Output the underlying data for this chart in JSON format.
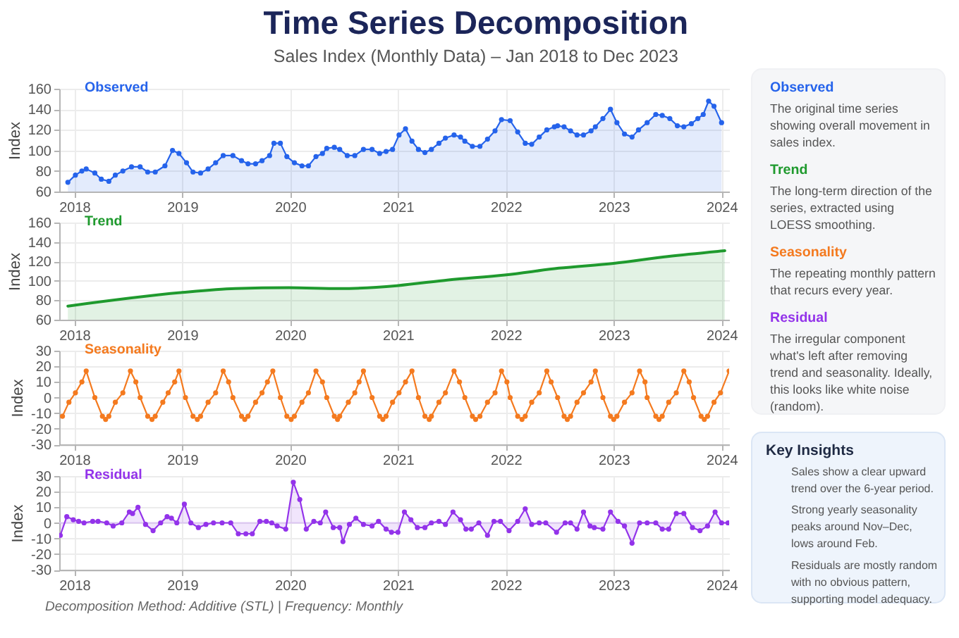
{
  "chart_data": [
    {
      "type": "area",
      "title": "Time Series Decomposition",
      "subtitle": "Sales Index (Monthly Data) – Jan 2018 to Dec 2023",
      "ylabel": "Index",
      "marker": "circle",
      "grid": true,
      "xlim": [
        2017.86,
        2024.07
      ],
      "xticks": [
        2018,
        2019,
        2020,
        2021,
        2022,
        2023,
        2024
      ],
      "ylim": [
        60,
        160
      ],
      "yticks": [
        60,
        80,
        100,
        120,
        140,
        160
      ],
      "x": [
        2017.94,
        2018.01,
        2018.07,
        2018.11,
        2018.19,
        2018.25,
        2018.32,
        2018.38,
        2018.45,
        2018.53,
        2018.61,
        2018.68,
        2018.75,
        2018.84,
        2018.91,
        2018.97,
        2019.04,
        2019.1,
        2019.17,
        2019.24,
        2019.31,
        2019.38,
        2019.47,
        2019.55,
        2019.61,
        2019.68,
        2019.74,
        2019.81,
        2019.85,
        2019.91,
        2019.97,
        2020.04,
        2020.11,
        2020.17,
        2020.24,
        2020.3,
        2020.34,
        2020.41,
        2020.46,
        2020.53,
        2020.6,
        2020.68,
        2020.76,
        2020.83,
        2020.89,
        2020.95,
        2021.01,
        2021.07,
        2021.13,
        2021.19,
        2021.25,
        2021.31,
        2021.38,
        2021.44,
        2021.52,
        2021.58,
        2021.62,
        2021.69,
        2021.76,
        2021.83,
        2021.9,
        2021.96,
        2022.04,
        2022.11,
        2022.18,
        2022.24,
        2022.31,
        2022.38,
        2022.45,
        2022.48,
        2022.54,
        2022.6,
        2022.66,
        2022.72,
        2022.79,
        2022.83,
        2022.9,
        2022.97,
        2023.03,
        2023.1,
        2023.17,
        2023.23,
        2023.31,
        2023.39,
        2023.45,
        2023.52,
        2023.59,
        2023.65,
        2023.72,
        2023.78,
        2023.83,
        2023.88,
        2023.93,
        2024.0
      ],
      "series": [
        {
          "name": "Observed",
          "color": "#2563eb",
          "values": [
            69,
            76,
            80,
            82,
            78,
            72,
            70,
            76,
            80,
            84,
            84,
            79,
            79,
            85,
            100,
            97,
            88,
            79,
            78,
            82,
            88,
            95,
            95,
            90,
            87,
            87,
            90,
            95,
            107,
            107,
            94,
            88,
            85,
            85,
            94,
            97,
            102,
            103,
            101,
            95,
            95,
            101,
            101,
            97,
            99,
            101,
            115,
            121,
            109,
            101,
            98,
            101,
            107,
            112,
            115,
            113,
            109,
            104,
            104,
            111,
            119,
            130,
            129,
            118,
            107,
            106,
            113,
            120,
            123,
            124,
            123,
            119,
            115,
            115,
            119,
            123,
            131,
            140,
            127,
            116,
            113,
            120,
            127,
            135,
            134,
            131,
            124,
            123,
            126,
            131,
            135,
            148,
            143,
            127
          ]
        }
      ]
    },
    {
      "type": "area",
      "ylabel": "Index",
      "grid": true,
      "xlim": [
        2017.86,
        2024.07
      ],
      "xticks": [
        2018,
        2019,
        2020,
        2021,
        2022,
        2023,
        2024
      ],
      "ylim": [
        60,
        160
      ],
      "yticks": [
        60,
        80,
        100,
        120,
        140,
        160
      ],
      "x": [
        2017.94,
        2019.0,
        2019.49,
        2019.99,
        2020.46,
        2020.99,
        2021.47,
        2021.99,
        2022.49,
        2023.0,
        2023.5,
        2024.03
      ],
      "series": [
        {
          "name": "Trend",
          "color": "#1f9a2e",
          "values": [
            74,
            88,
            92,
            93,
            92,
            95,
            101,
            106,
            113,
            118,
            125,
            131
          ]
        }
      ]
    },
    {
      "type": "line",
      "ylabel": "Index",
      "marker": "circle",
      "grid": true,
      "xlim": [
        2017.86,
        2024.07
      ],
      "xticks": [
        2018,
        2019,
        2020,
        2021,
        2022,
        2023,
        2024
      ],
      "ylim": [
        -30,
        30
      ],
      "yticks": [
        -30,
        -20,
        -10,
        0,
        10,
        20,
        30
      ],
      "x": [
        2017.89,
        2017.95,
        2018.01,
        2018.07,
        2018.11,
        2018.19,
        2018.26,
        2018.29,
        2018.32,
        2018.38,
        2018.45,
        2018.52,
        2018.57,
        2018.61,
        2018.68,
        2018.72,
        2018.75,
        2018.82,
        2018.87,
        2018.93,
        2018.97,
        2019.03,
        2019.1,
        2019.14,
        2019.17,
        2019.24,
        2019.31,
        2019.38,
        2019.43,
        2019.47,
        2019.55,
        2019.58,
        2019.61,
        2019.68,
        2019.74,
        2019.79,
        2019.84,
        2019.91,
        2019.97,
        2020.01,
        2020.04,
        2020.11,
        2020.17,
        2020.24,
        2020.3,
        2020.34,
        2020.41,
        2020.44,
        2020.46,
        2020.54,
        2020.6,
        2020.64,
        2020.68,
        2020.76,
        2020.83,
        2020.86,
        2020.89,
        2020.95,
        2021.01,
        2021.07,
        2021.13,
        2021.19,
        2021.25,
        2021.29,
        2021.31,
        2021.38,
        2021.44,
        2021.52,
        2021.57,
        2021.62,
        2021.69,
        2021.72,
        2021.76,
        2021.83,
        2021.9,
        2021.96,
        2022.01,
        2022.04,
        2022.11,
        2022.15,
        2022.18,
        2022.24,
        2022.31,
        2022.38,
        2022.42,
        2022.48,
        2022.54,
        2022.57,
        2022.6,
        2022.66,
        2022.72,
        2022.79,
        2022.83,
        2022.9,
        2022.97,
        2023.0,
        2023.03,
        2023.1,
        2023.17,
        2023.24,
        2023.29,
        2023.31,
        2023.39,
        2023.42,
        2023.45,
        2023.51,
        2023.58,
        2023.65,
        2023.7,
        2023.74,
        2023.81,
        2023.84,
        2023.87,
        2023.93,
        2023.99,
        2024.07
      ],
      "series": [
        {
          "name": "Seasonality",
          "color": "#f47a1f",
          "values": [
            -12,
            -3,
            3,
            10,
            17,
            0,
            -12,
            -14,
            -12,
            -3,
            3,
            17,
            10,
            0,
            -12,
            -14,
            -12,
            -3,
            3,
            10,
            17,
            0,
            -12,
            -14,
            -12,
            -3,
            3,
            17,
            10,
            0,
            -12,
            -14,
            -12,
            -3,
            3,
            10,
            17,
            0,
            -12,
            -14,
            -12,
            -3,
            3,
            17,
            10,
            0,
            -12,
            -14,
            -12,
            -3,
            3,
            10,
            17,
            0,
            -12,
            -14,
            -12,
            -3,
            3,
            10,
            17,
            0,
            -12,
            -14,
            -12,
            -3,
            3,
            17,
            10,
            0,
            -12,
            -14,
            -12,
            -3,
            3,
            17,
            10,
            0,
            -12,
            -14,
            -12,
            -3,
            3,
            17,
            10,
            0,
            -12,
            -14,
            -12,
            -3,
            3,
            10,
            17,
            0,
            -12,
            -14,
            -12,
            -3,
            3,
            17,
            10,
            0,
            -12,
            -14,
            -12,
            -3,
            3,
            17,
            10,
            0,
            -12,
            -14,
            -12,
            -3,
            3,
            17
          ]
        }
      ]
    },
    {
      "type": "area",
      "ylabel": "Index",
      "marker": "circle",
      "grid": true,
      "xlim": [
        2017.86,
        2024.07
      ],
      "xticks": [
        2018,
        2019,
        2020,
        2021,
        2022,
        2023,
        2024
      ],
      "ylim": [
        -30,
        30
      ],
      "yticks": [
        -30,
        -20,
        -10,
        0,
        10,
        20,
        30
      ],
      "x": [
        2017.87,
        2017.93,
        2017.99,
        2018.04,
        2018.09,
        2018.17,
        2018.22,
        2018.3,
        2018.36,
        2018.44,
        2018.51,
        2018.54,
        2018.59,
        2018.66,
        2018.73,
        2018.8,
        2018.86,
        2018.9,
        2018.95,
        2019.02,
        2019.08,
        2019.15,
        2019.22,
        2019.29,
        2019.37,
        2019.45,
        2019.52,
        2019.59,
        2019.65,
        2019.72,
        2019.78,
        2019.83,
        2019.88,
        2019.96,
        2020.03,
        2020.09,
        2020.15,
        2020.22,
        2020.28,
        2020.33,
        2020.4,
        2020.46,
        2020.49,
        2020.55,
        2020.61,
        2020.68,
        2020.76,
        2020.82,
        2020.89,
        2020.94,
        2021.0,
        2021.06,
        2021.12,
        2021.18,
        2021.25,
        2021.31,
        2021.38,
        2021.44,
        2021.51,
        2021.58,
        2021.63,
        2021.68,
        2021.75,
        2021.83,
        2021.89,
        2021.95,
        2022.03,
        2022.11,
        2022.18,
        2022.24,
        2022.31,
        2022.37,
        2022.47,
        2022.55,
        2022.6,
        2022.66,
        2022.72,
        2022.78,
        2022.82,
        2022.9,
        2022.97,
        2023.04,
        2023.1,
        2023.17,
        2023.24,
        2023.31,
        2023.39,
        2023.45,
        2023.51,
        2023.58,
        2023.65,
        2023.73,
        2023.8,
        2023.87,
        2023.94,
        2024.0,
        2024.06
      ],
      "series": [
        {
          "name": "Residual",
          "color": "#9333ea",
          "values": [
            -8,
            4,
            2,
            1,
            0,
            1,
            1,
            0,
            -2,
            0,
            7,
            6,
            10,
            -1,
            -5,
            0,
            4,
            3,
            0,
            12,
            0,
            -3,
            -1,
            0,
            0,
            0,
            -7,
            -7,
            -7,
            1,
            1,
            0,
            -2,
            -4,
            26,
            15,
            -4,
            1,
            0,
            7,
            -3,
            -3,
            -12,
            -1,
            3,
            -1,
            -2,
            1,
            -4,
            -6,
            -6,
            7,
            2,
            -3,
            -3,
            0,
            1,
            -1,
            7,
            2,
            -4,
            -4,
            0,
            -8,
            1,
            1,
            -5,
            1,
            9,
            -1,
            0,
            0,
            -6,
            0,
            0,
            -4,
            7,
            -2,
            -3,
            -4,
            7,
            1,
            -2,
            -13,
            0,
            0,
            0,
            -4,
            -4,
            6,
            6,
            -3,
            -5,
            -2,
            7,
            0,
            0
          ]
        }
      ],
      "ref_lines": [
        {
          "axis": "y",
          "value": 0,
          "color": "#dcc6f2"
        }
      ],
      "annotations": [
        "Decomposition Method: Additive (STL) | Frequency: Monthly"
      ]
    },
    {
      "type": "other",
      "annotations": [
        "Observed",
        "The original time series showing overall movement in sales index.",
        "Trend",
        "The long-term direction of the series, extracted using LOESS smoothing.",
        "Seasonality",
        "The repeating monthly pattern that recurs every year.",
        "Residual",
        "The irregular component what's left after removing trend and seasonality. Ideally, this looks like white noise (random)."
      ]
    },
    {
      "type": "other",
      "title": "Key Insights",
      "annotations": [
        "Sales show a clear upward trend over the 6-year period.",
        "Strong yearly seasonality peaks around Nov–Dec, lows around Feb.",
        "Residuals are mostly random with no obvious pattern, supporting model adequacy."
      ]
    }
  ]
}
